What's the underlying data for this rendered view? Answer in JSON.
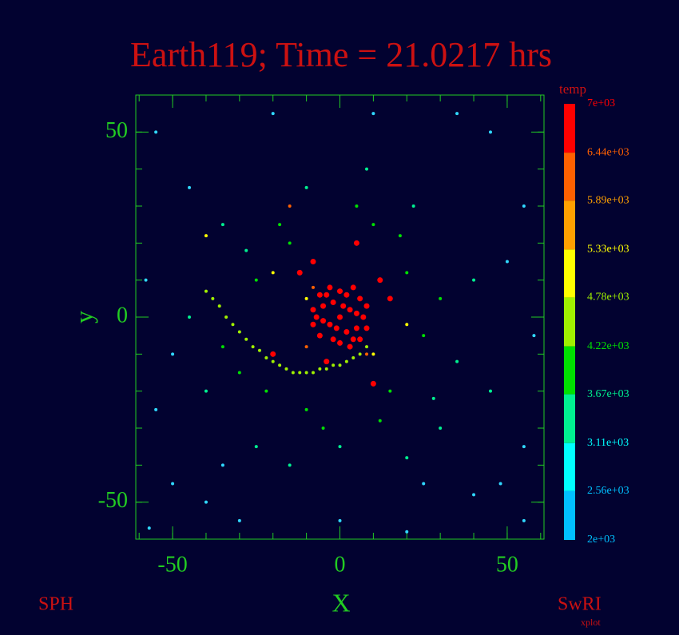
{
  "chart_data": {
    "type": "scatter",
    "title": "Earth119; Time = 21.0217 hrs",
    "x_label": "X",
    "y_label": "y",
    "left_note": "SPH",
    "right_note": "SwRI",
    "right_subnote": "xplot",
    "xlim": [
      -61,
      61
    ],
    "ylim": [
      -60,
      60
    ],
    "xticks": [
      -50,
      0,
      50
    ],
    "yticks": [
      -50,
      0,
      50
    ],
    "xminorticks": [
      -60,
      -50,
      -40,
      -30,
      -20,
      -10,
      0,
      10,
      20,
      30,
      40,
      50,
      60
    ],
    "yminorticks": [
      -50,
      -40,
      -30,
      -20,
      -10,
      0,
      10,
      20,
      30,
      40,
      50
    ],
    "colorbar": {
      "label": "temp",
      "ticks": [
        {
          "value": 7000,
          "label": "7e+03"
        },
        {
          "value": 6440,
          "label": "6.44e+03"
        },
        {
          "value": 5890,
          "label": "5.89e+03"
        },
        {
          "value": 5330,
          "label": "5.33e+03"
        },
        {
          "value": 4780,
          "label": "4.78e+03"
        },
        {
          "value": 4220,
          "label": "4.22e+03"
        },
        {
          "value": 3670,
          "label": "3.67e+03"
        },
        {
          "value": 3110,
          "label": "3.11e+03"
        },
        {
          "value": 2560,
          "label": "2.56e+03"
        },
        {
          "value": 2000,
          "label": "2e+03"
        }
      ],
      "colors": [
        "#ff0000",
        "#ff6000",
        "#ffa000",
        "#ffff00",
        "#a0f000",
        "#00e000",
        "#00f090",
        "#00ffff",
        "#00c0ff"
      ]
    },
    "series": [
      {
        "color": "#ff0000",
        "x": [
          0,
          3,
          -3,
          5,
          -5,
          2,
          -2,
          6,
          -6,
          7,
          -7,
          0,
          0,
          4,
          -4,
          8,
          -8,
          3,
          -3,
          1,
          -1,
          5,
          -5,
          2,
          -2,
          6,
          -6,
          8,
          -8,
          4,
          -8,
          -12,
          5,
          10,
          -4,
          15,
          -20,
          12
        ],
        "y": [
          0,
          2,
          -2,
          -3,
          3,
          6,
          -6,
          5,
          -5,
          0,
          0,
          7,
          -7,
          -6,
          6,
          3,
          -2,
          -8,
          8,
          3,
          -3,
          1,
          -1,
          -4,
          4,
          -6,
          6,
          -3,
          2,
          8,
          15,
          12,
          20,
          -18,
          -12,
          5,
          -10,
          10
        ]
      },
      {
        "color": "#ff6000",
        "x": [
          -8,
          8,
          -10,
          -15
        ],
        "y": [
          8,
          -10,
          -8,
          30
        ]
      },
      {
        "color": "#ffff00",
        "x": [
          -20,
          -40,
          10,
          -10,
          20
        ],
        "y": [
          12,
          22,
          -10,
          5,
          -2
        ]
      },
      {
        "color": "#a0f000",
        "x": [
          -40,
          -38,
          -36,
          -34,
          -32,
          -30,
          -28,
          -26,
          -24,
          -22,
          -20,
          -18,
          -16,
          -14,
          -12,
          -10,
          -8,
          -6,
          -4,
          -2,
          0,
          2,
          4,
          6,
          8
        ],
        "y": [
          7,
          5,
          3,
          0,
          -2,
          -4,
          -6,
          -8,
          -9,
          -11,
          -12,
          -13,
          -14,
          -15,
          -15,
          -15,
          -15,
          -14,
          -14,
          -13,
          -13,
          -12,
          -11,
          -10,
          -8
        ]
      },
      {
        "color": "#00e000",
        "x": [
          -25,
          -15,
          10,
          20,
          -10,
          15,
          25,
          -30,
          5,
          -5,
          18,
          -22,
          30,
          -35,
          12,
          -18
        ],
        "y": [
          10,
          20,
          25,
          12,
          -25,
          -20,
          -5,
          -15,
          30,
          -30,
          22,
          -20,
          5,
          -8,
          -28,
          25
        ]
      },
      {
        "color": "#00f090",
        "x": [
          -28,
          22,
          35,
          -40,
          0,
          30,
          -10,
          40,
          -45,
          20,
          -25,
          8,
          45,
          -35,
          28,
          -15
        ],
        "y": [
          18,
          30,
          -12,
          -20,
          -35,
          -30,
          35,
          10,
          0,
          -38,
          -35,
          40,
          -20,
          25,
          -22,
          -40
        ]
      },
      {
        "color": "#30d8ff",
        "x": [
          -55,
          -45,
          -20,
          10,
          45,
          55,
          -58,
          -55,
          -50,
          -30,
          0,
          20,
          40,
          55,
          58,
          50,
          -40,
          35,
          -50,
          55,
          -57,
          25,
          -35,
          48
        ],
        "y": [
          50,
          35,
          55,
          55,
          50,
          30,
          10,
          -25,
          -45,
          -55,
          -55,
          -58,
          -48,
          -35,
          -5,
          15,
          -50,
          55,
          -10,
          -55,
          -57,
          -45,
          -40,
          -45
        ]
      }
    ]
  }
}
